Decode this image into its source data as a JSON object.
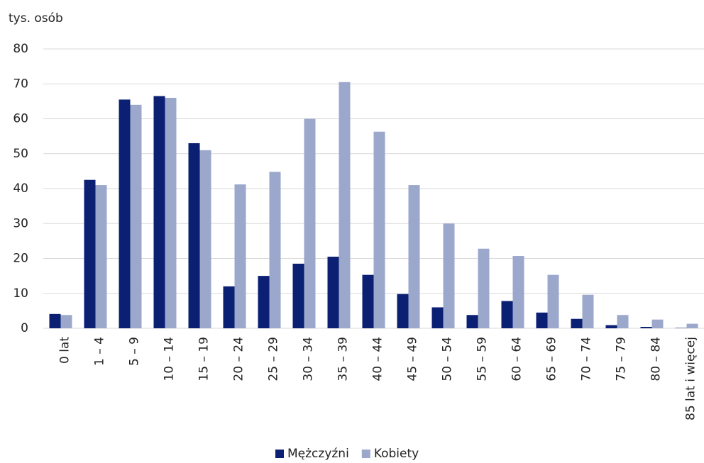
{
  "chart_data": {
    "type": "bar",
    "y_label": "tys. osób",
    "categories": [
      "0 lat",
      "1 – 4",
      "5 – 9",
      "10 – 14",
      "15 – 19",
      "20 – 24",
      "25 – 29",
      "30 – 34",
      "35 – 39",
      "40 – 44",
      "45 – 49",
      "50 – 54",
      "55 – 59",
      "60 – 64",
      "65 – 69",
      "70 – 74",
      "75 – 79",
      "80 – 84",
      "85 lat i więcej"
    ],
    "series": [
      {
        "name": "Mężczyźni",
        "color": "#0b1f73",
        "values": [
          4.1,
          42.5,
          65.5,
          66.5,
          53,
          12,
          15,
          18.5,
          20.5,
          15.3,
          9.8,
          6,
          3.8,
          7.8,
          4.5,
          2.7,
          0.9,
          0.4,
          0.1
        ]
      },
      {
        "name": "Kobiety",
        "color": "#9ba8cc",
        "values": [
          3.8,
          41,
          64,
          66,
          51,
          41.2,
          44.8,
          60,
          70.5,
          56.3,
          41,
          30,
          22.8,
          20.7,
          15.3,
          9.6,
          3.8,
          2.5,
          1.3
        ]
      }
    ],
    "ylim": [
      0,
      80
    ],
    "yticks": [
      0,
      10,
      20,
      30,
      40,
      50,
      60,
      70,
      80
    ],
    "grid": true,
    "legend": "bottom"
  }
}
